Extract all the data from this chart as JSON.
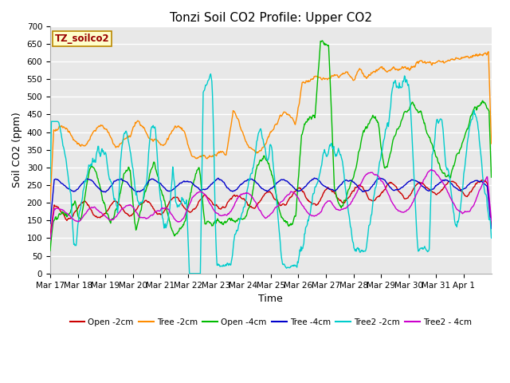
{
  "title": "Tonzi Soil CO2 Profile: Upper CO2",
  "xlabel": "Time",
  "ylabel": "Soil CO2 (ppm)",
  "label_text": "TZ_soilco2",
  "ylim": [
    0,
    700
  ],
  "yticks": [
    0,
    50,
    100,
    150,
    200,
    250,
    300,
    350,
    400,
    450,
    500,
    550,
    600,
    650,
    700
  ],
  "xtick_labels": [
    "Mar 17",
    "Mar 18",
    "Mar 19",
    "Mar 20",
    "Mar 21",
    "Mar 22",
    "Mar 23",
    "Mar 24",
    "Mar 25",
    "Mar 26",
    "Mar 27",
    "Mar 28",
    "Mar 29",
    "Mar 30",
    "Mar 31",
    "Apr 1"
  ],
  "series_colors": {
    "Open-2cm": "#cc0000",
    "Tree-2cm": "#ff8c00",
    "Open-4cm": "#00bb00",
    "Tree-4cm": "#0000cc",
    "Tree2-2cm": "#00cccc",
    "Tree2-4cm": "#cc00cc"
  },
  "legend_labels": [
    "Open -2cm",
    "Tree -2cm",
    "Open -4cm",
    "Tree -4cm",
    "Tree2 -2cm",
    "Tree2 - 4cm"
  ],
  "fig_bg": "#ffffff",
  "plot_bg": "#e8e8e8",
  "grid_color": "#ffffff",
  "title_fontsize": 11,
  "label_fontsize": 9,
  "tick_fontsize": 7.5
}
